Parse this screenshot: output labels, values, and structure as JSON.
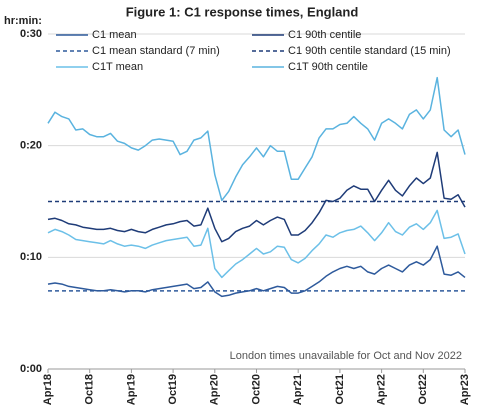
{
  "chart_data": {
    "type": "line",
    "title": "Figure 1: C1 response times, England",
    "y_label": "hr:min:",
    "annotation": "London times unavailable for Oct and Nov 2022",
    "categories": [
      "Apr18",
      null,
      null,
      null,
      null,
      null,
      "Oct18",
      null,
      null,
      null,
      null,
      null,
      "Apr19",
      null,
      null,
      null,
      null,
      null,
      "Oct19",
      null,
      null,
      null,
      null,
      null,
      "Apr20",
      null,
      null,
      null,
      null,
      null,
      "Oct20",
      null,
      null,
      null,
      null,
      null,
      "Apr21",
      null,
      null,
      null,
      null,
      null,
      "Oct21",
      null,
      null,
      null,
      null,
      null,
      "Apr22",
      null,
      null,
      null,
      null,
      null,
      "Oct22",
      null,
      null,
      null,
      null,
      null,
      "Apr23"
    ],
    "series": [
      {
        "name": "C1 mean",
        "color": "#2e5a9c",
        "values": [
          7.6,
          7.7,
          7.6,
          7.4,
          7.3,
          7.2,
          7.1,
          7.0,
          7.0,
          7.1,
          7.0,
          6.9,
          7.0,
          7.0,
          6.9,
          7.1,
          7.2,
          7.3,
          7.4,
          7.5,
          7.6,
          7.2,
          7.3,
          7.8,
          6.9,
          6.5,
          6.6,
          6.8,
          6.9,
          7.0,
          7.2,
          7.0,
          7.2,
          7.4,
          7.3,
          6.8,
          6.8,
          7.0,
          7.4,
          7.8,
          8.3,
          8.7,
          9.0,
          9.2,
          9.0,
          9.2,
          8.7,
          8.5,
          9.0,
          9.3,
          9.0,
          8.7,
          9.3,
          9.6,
          9.3,
          9.8,
          11.0,
          8.5,
          8.4,
          8.7,
          8.2
        ]
      },
      {
        "name": "C1 90th centile",
        "color": "#1f3c78",
        "values": [
          13.4,
          13.5,
          13.3,
          13.0,
          12.9,
          12.7,
          12.6,
          12.5,
          12.5,
          12.6,
          12.4,
          12.3,
          12.5,
          12.3,
          12.2,
          12.5,
          12.7,
          12.9,
          13.0,
          13.2,
          13.3,
          12.8,
          12.9,
          14.4,
          12.6,
          11.4,
          11.7,
          12.3,
          12.6,
          12.8,
          13.3,
          12.9,
          13.3,
          13.6,
          13.4,
          12.0,
          12.0,
          12.4,
          13.1,
          14.0,
          15.1,
          15.0,
          15.3,
          16.0,
          16.4,
          16.1,
          16.1,
          15.0,
          16.0,
          16.9,
          16.0,
          15.5,
          16.4,
          17.1,
          16.6,
          17.1,
          19.4,
          15.3,
          15.2,
          15.6,
          14.5
        ]
      },
      {
        "name": "C1T mean",
        "color": "#6cc0e8",
        "values": [
          12.2,
          12.5,
          12.3,
          12.0,
          11.6,
          11.5,
          11.4,
          11.3,
          11.2,
          11.5,
          11.2,
          11.0,
          11.1,
          11.0,
          10.8,
          11.1,
          11.3,
          11.5,
          11.6,
          11.7,
          11.8,
          11.0,
          11.1,
          12.6,
          9.0,
          8.2,
          8.8,
          9.4,
          9.8,
          10.3,
          10.8,
          10.3,
          10.5,
          11.0,
          10.9,
          9.8,
          9.5,
          9.9,
          10.6,
          11.2,
          12.0,
          11.8,
          12.2,
          12.4,
          12.5,
          12.8,
          12.2,
          11.5,
          12.2,
          13.1,
          12.3,
          12.0,
          12.7,
          13.0,
          12.5,
          13.1,
          14.2,
          11.7,
          11.8,
          12.1,
          10.3
        ]
      },
      {
        "name": "C1T 90th centile",
        "color": "#5ab3df",
        "values": [
          22.0,
          23.0,
          22.6,
          22.4,
          21.4,
          21.5,
          21.0,
          20.8,
          20.8,
          21.1,
          20.4,
          20.2,
          19.8,
          19.6,
          20.0,
          20.5,
          20.6,
          20.5,
          20.4,
          19.2,
          19.5,
          20.5,
          20.7,
          21.3,
          17.4,
          15.1,
          15.9,
          17.2,
          18.3,
          19.0,
          19.8,
          19.0,
          20.0,
          19.5,
          19.5,
          17.0,
          17.0,
          18.0,
          19.0,
          20.7,
          21.5,
          21.5,
          21.9,
          22.0,
          22.6,
          22.0,
          21.5,
          20.5,
          22.0,
          22.4,
          22.0,
          21.5,
          22.8,
          23.2,
          22.4,
          23.2,
          26.1,
          21.4,
          20.8,
          21.4,
          19.2
        ]
      }
    ],
    "reference_lines": [
      {
        "name": "C1 mean standard (7 min)",
        "color": "#2e5a9c",
        "value": 7
      },
      {
        "name": "C1 90th centile standard (15 min)",
        "color": "#1f3c78",
        "value": 15
      }
    ],
    "ylim": [
      0,
      30
    ],
    "yticks": [
      {
        "value": 0,
        "label": "0:00"
      },
      {
        "value": 10,
        "label": "0:10"
      },
      {
        "value": 20,
        "label": "0:20"
      },
      {
        "value": 30,
        "label": "0:30"
      }
    ],
    "grid": true
  }
}
